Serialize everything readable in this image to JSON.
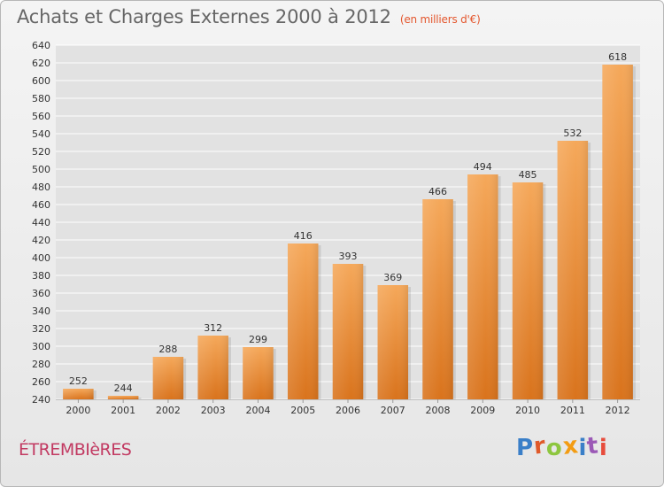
{
  "title": "Achats et Charges Externes 2000 à 2012",
  "unit": "(en milliers d'€)",
  "commune": "ÉTREMBIèRES",
  "logo_text": "Proxiti",
  "colors": {
    "bar_top": "#f5a85a",
    "bar_bottom": "#d9731c",
    "grid": "#ffffff",
    "commune": "#c23a62",
    "logo": [
      "#3a7fc8",
      "#e05a2a",
      "#8dc63f",
      "#f39c12",
      "#3a7fc8",
      "#9b59b6",
      "#e74c3c"
    ]
  },
  "chart_data": {
    "type": "bar",
    "categories": [
      "2000",
      "2001",
      "2002",
      "2003",
      "2004",
      "2005",
      "2006",
      "2007",
      "2008",
      "2009",
      "2010",
      "2011",
      "2012"
    ],
    "values": [
      252,
      244,
      288,
      312,
      299,
      416,
      393,
      369,
      466,
      494,
      485,
      532,
      618
    ],
    "ylim": [
      240,
      640
    ],
    "yticks": [
      240,
      260,
      280,
      300,
      320,
      340,
      360,
      380,
      400,
      420,
      440,
      460,
      480,
      500,
      520,
      540,
      560,
      580,
      600,
      620,
      640
    ],
    "grid": true
  }
}
